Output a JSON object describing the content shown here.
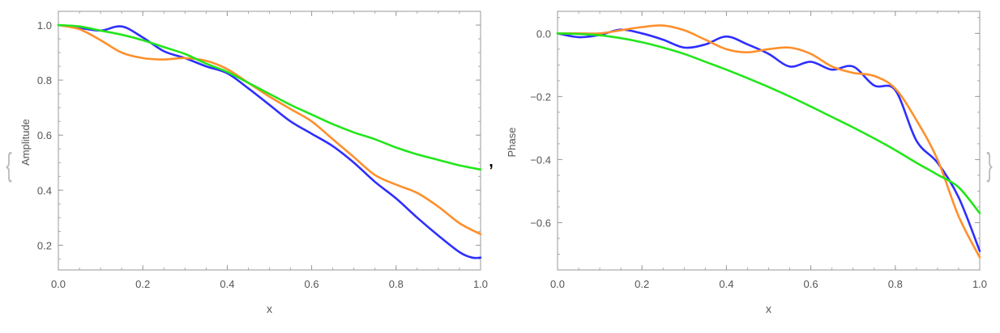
{
  "wrapper": {
    "open_brace": "{",
    "separator": ",",
    "close_brace": "}"
  },
  "colors": {
    "blue": "#2e2eff",
    "orange": "#ff8f2b",
    "green": "#22e61a",
    "frame": "#999999",
    "text": "#555555"
  },
  "chart_data": [
    {
      "type": "line",
      "title": "",
      "xlabel": "x",
      "ylabel": "Amplitude",
      "xlim": [
        0,
        1.0
      ],
      "ylim": [
        0.11,
        1.05
      ],
      "grid": false,
      "xticks": [
        0.0,
        0.2,
        0.4,
        0.6,
        0.8,
        1.0
      ],
      "xtick_labels": [
        "0.0",
        "0.2",
        "0.4",
        "0.6",
        "0.8",
        "1.0"
      ],
      "yticks": [
        0.2,
        0.4,
        0.6,
        0.8,
        1.0
      ],
      "ytick_labels": [
        "0.2",
        "0.4",
        "0.6",
        "0.8",
        "1.0"
      ],
      "series": [
        {
          "color": "#2e2eff",
          "x": [
            0,
            0.05,
            0.1,
            0.15,
            0.2,
            0.25,
            0.3,
            0.35,
            0.4,
            0.45,
            0.5,
            0.55,
            0.6,
            0.65,
            0.7,
            0.75,
            0.8,
            0.85,
            0.9,
            0.95,
            0.98,
            1.0
          ],
          "y": [
            1.0,
            0.99,
            0.98,
            0.995,
            0.955,
            0.905,
            0.88,
            0.85,
            0.825,
            0.77,
            0.71,
            0.65,
            0.605,
            0.56,
            0.5,
            0.43,
            0.37,
            0.3,
            0.235,
            0.175,
            0.155,
            0.155
          ]
        },
        {
          "color": "#ff8f2b",
          "x": [
            0,
            0.05,
            0.1,
            0.15,
            0.2,
            0.25,
            0.3,
            0.35,
            0.4,
            0.45,
            0.5,
            0.55,
            0.6,
            0.65,
            0.7,
            0.75,
            0.8,
            0.85,
            0.9,
            0.95,
            1.0
          ],
          "y": [
            1.0,
            0.985,
            0.945,
            0.9,
            0.88,
            0.875,
            0.88,
            0.87,
            0.84,
            0.79,
            0.74,
            0.695,
            0.65,
            0.585,
            0.52,
            0.455,
            0.42,
            0.39,
            0.34,
            0.28,
            0.24
          ]
        },
        {
          "color": "#22e61a",
          "x": [
            0,
            0.05,
            0.1,
            0.15,
            0.2,
            0.25,
            0.3,
            0.35,
            0.4,
            0.45,
            0.5,
            0.55,
            0.6,
            0.65,
            0.7,
            0.75,
            0.8,
            0.85,
            0.9,
            0.95,
            1.0
          ],
          "y": [
            1.0,
            0.995,
            0.98,
            0.965,
            0.945,
            0.92,
            0.895,
            0.86,
            0.83,
            0.79,
            0.75,
            0.71,
            0.675,
            0.64,
            0.61,
            0.585,
            0.555,
            0.53,
            0.51,
            0.49,
            0.475
          ]
        }
      ]
    },
    {
      "type": "line",
      "title": "",
      "xlabel": "x",
      "ylabel": "Phase",
      "xlim": [
        0,
        1.0
      ],
      "ylim": [
        -0.75,
        0.07
      ],
      "grid": false,
      "xticks": [
        0.0,
        0.2,
        0.4,
        0.6,
        0.8,
        1.0
      ],
      "xtick_labels": [
        "0.0",
        "0.2",
        "0.4",
        "0.6",
        "0.8",
        "1.0"
      ],
      "yticks": [
        -0.6,
        -0.4,
        -0.2,
        0.0
      ],
      "ytick_labels": [
        "−0.6",
        "−0.4",
        "−0.2",
        "0.0"
      ],
      "series": [
        {
          "color": "#2e2eff",
          "x": [
            0,
            0.05,
            0.1,
            0.15,
            0.2,
            0.25,
            0.3,
            0.35,
            0.4,
            0.45,
            0.5,
            0.55,
            0.6,
            0.65,
            0.7,
            0.75,
            0.8,
            0.85,
            0.9,
            0.95,
            1.0
          ],
          "y": [
            0.0,
            -0.012,
            -0.005,
            0.012,
            0.0,
            -0.02,
            -0.045,
            -0.035,
            -0.01,
            -0.035,
            -0.065,
            -0.105,
            -0.09,
            -0.115,
            -0.105,
            -0.165,
            -0.18,
            -0.34,
            -0.41,
            -0.52,
            -0.69
          ]
        },
        {
          "color": "#ff8f2b",
          "x": [
            0,
            0.05,
            0.1,
            0.15,
            0.2,
            0.25,
            0.3,
            0.35,
            0.4,
            0.45,
            0.5,
            0.55,
            0.6,
            0.65,
            0.7,
            0.75,
            0.8,
            0.85,
            0.9,
            0.95,
            1.0
          ],
          "y": [
            0.0,
            0.0,
            0.0,
            0.01,
            0.02,
            0.025,
            0.01,
            -0.02,
            -0.05,
            -0.06,
            -0.05,
            -0.045,
            -0.065,
            -0.105,
            -0.125,
            -0.135,
            -0.175,
            -0.275,
            -0.4,
            -0.58,
            -0.71
          ]
        },
        {
          "color": "#22e61a",
          "x": [
            0,
            0.05,
            0.1,
            0.15,
            0.2,
            0.25,
            0.3,
            0.35,
            0.4,
            0.45,
            0.5,
            0.55,
            0.6,
            0.65,
            0.7,
            0.75,
            0.8,
            0.85,
            0.9,
            0.95,
            1.0
          ],
          "y": [
            0.0,
            -0.002,
            -0.006,
            -0.015,
            -0.028,
            -0.045,
            -0.065,
            -0.09,
            -0.115,
            -0.142,
            -0.17,
            -0.2,
            -0.232,
            -0.265,
            -0.298,
            -0.333,
            -0.37,
            -0.41,
            -0.448,
            -0.488,
            -0.57
          ]
        }
      ]
    }
  ]
}
